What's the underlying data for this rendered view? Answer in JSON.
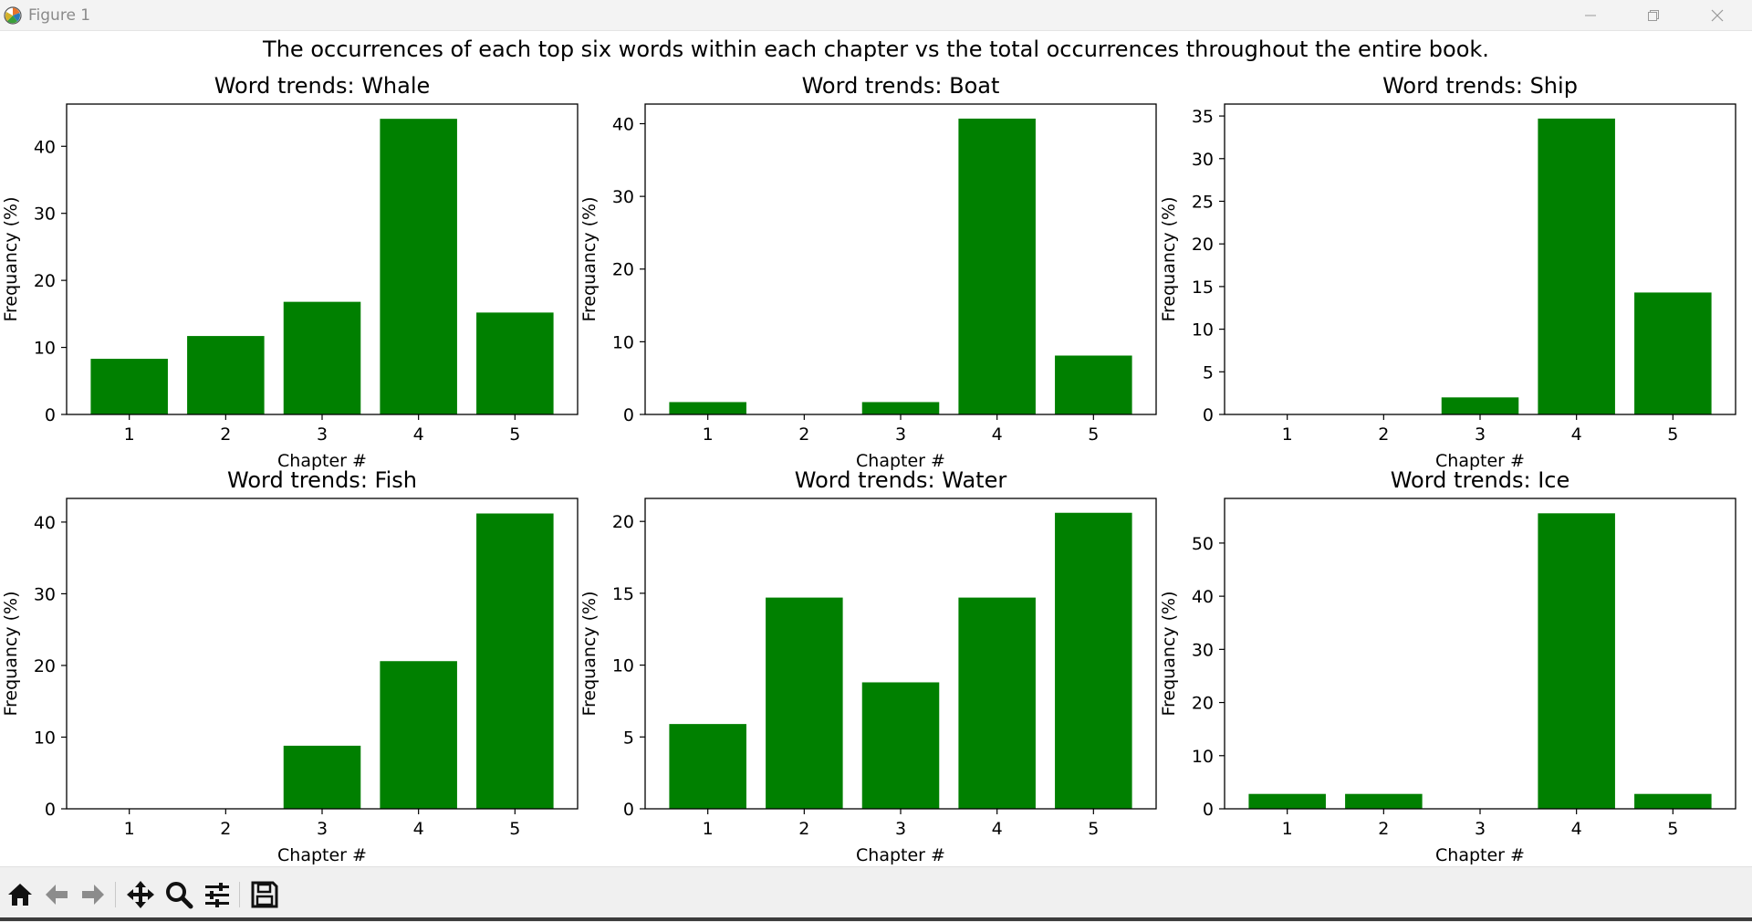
{
  "window": {
    "title": "Figure 1"
  },
  "figure": {
    "suptitle": "The occurrences of each top six words within each chapter vs the total occurrences throughout the entire book."
  },
  "chart_data": [
    {
      "type": "bar",
      "title": "Word trends: Whale",
      "xlabel": "Chapter #",
      "ylabel": "Frequancy (%)",
      "categories": [
        "1",
        "2",
        "3",
        "4",
        "5"
      ],
      "values": [
        8.3,
        11.7,
        16.8,
        44.1,
        15.2
      ],
      "yticks": [
        0,
        10,
        20,
        30,
        40
      ],
      "ylim": [
        0,
        46.3
      ],
      "color": "#008000",
      "grid": false
    },
    {
      "type": "bar",
      "title": "Word trends: Boat",
      "xlabel": "Chapter #",
      "ylabel": "Frequancy (%)",
      "categories": [
        "1",
        "2",
        "3",
        "4",
        "5"
      ],
      "values": [
        1.7,
        0,
        1.7,
        40.7,
        8.1
      ],
      "yticks": [
        0,
        10,
        20,
        30,
        40
      ],
      "ylim": [
        0,
        42.7
      ],
      "color": "#008000",
      "grid": false
    },
    {
      "type": "bar",
      "title": "Word trends: Ship",
      "xlabel": "Chapter #",
      "ylabel": "Frequancy (%)",
      "categories": [
        "1",
        "2",
        "3",
        "4",
        "5"
      ],
      "values": [
        0,
        0,
        2.0,
        34.7,
        14.3
      ],
      "yticks": [
        0,
        5,
        10,
        15,
        20,
        25,
        30,
        35
      ],
      "ylim": [
        0,
        36.4
      ],
      "color": "#008000",
      "grid": false
    },
    {
      "type": "bar",
      "title": "Word trends: Fish",
      "xlabel": "Chapter #",
      "ylabel": "Frequancy (%)",
      "categories": [
        "1",
        "2",
        "3",
        "4",
        "5"
      ],
      "values": [
        0,
        0,
        8.8,
        20.6,
        41.2
      ],
      "yticks": [
        0,
        10,
        20,
        30,
        40
      ],
      "ylim": [
        0,
        43.3
      ],
      "color": "#008000",
      "grid": false
    },
    {
      "type": "bar",
      "title": "Word trends: Water",
      "xlabel": "Chapter #",
      "ylabel": "Frequancy (%)",
      "categories": [
        "1",
        "2",
        "3",
        "4",
        "5"
      ],
      "values": [
        5.9,
        14.7,
        8.8,
        14.7,
        20.6
      ],
      "yticks": [
        0,
        5,
        10,
        15,
        20
      ],
      "ylim": [
        0,
        21.6
      ],
      "color": "#008000",
      "grid": false
    },
    {
      "type": "bar",
      "title": "Word trends: Ice",
      "xlabel": "Chapter #",
      "ylabel": "Frequancy (%)",
      "categories": [
        "1",
        "2",
        "3",
        "4",
        "5"
      ],
      "values": [
        2.8,
        2.8,
        0,
        55.6,
        2.8
      ],
      "yticks": [
        0,
        10,
        20,
        30,
        40,
        50
      ],
      "ylim": [
        0,
        58.4
      ],
      "color": "#008000",
      "grid": false
    }
  ],
  "toolbar": {
    "icons": [
      "home-icon",
      "back-arrow-icon",
      "forward-arrow-icon",
      "pan-icon",
      "zoom-icon",
      "configure-subplots-icon",
      "save-icon"
    ]
  },
  "colors": {
    "bar": "#008000",
    "axes": "#000000",
    "toolbar_bg": "#f0f0f0",
    "titlebar_bg": "#f3f3f3"
  }
}
